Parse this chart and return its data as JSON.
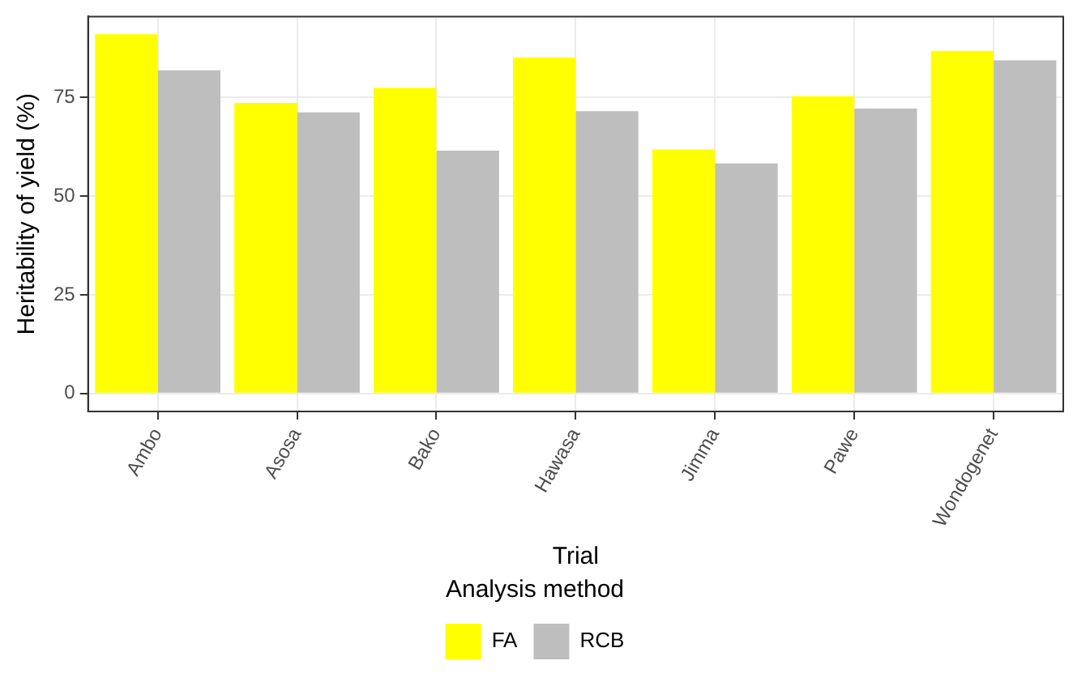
{
  "chart_data": {
    "type": "bar",
    "xlabel": "Trial",
    "ylabel": "Heritability of yield (%)",
    "legend_title": "Analysis method",
    "categories": [
      "Ambo",
      "Asosa",
      "Bako",
      "Hawasa",
      "Jimma",
      "Pawe",
      "Wondogenet"
    ],
    "series": [
      {
        "name": "FA",
        "color": "#ffff00",
        "values": [
          91,
          73.6,
          77.4,
          85.1,
          61.8,
          75.3,
          86.8
        ]
      },
      {
        "name": "RCB",
        "color": "#bebebe",
        "values": [
          81.9,
          71.2,
          61.5,
          71.5,
          58.3,
          72.2,
          84.4
        ]
      }
    ],
    "ylim": [
      -4.6,
      95.5
    ],
    "yticks": [
      0,
      25,
      50,
      75
    ],
    "grid": true,
    "legend": "bottom"
  }
}
